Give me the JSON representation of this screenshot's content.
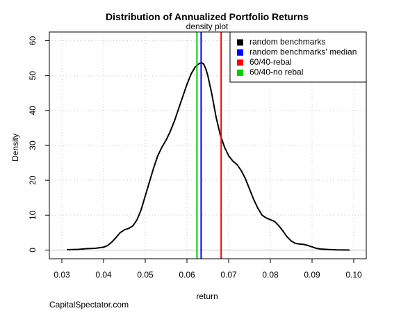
{
  "chart_data": {
    "type": "line",
    "title": "Distribution of Annualized Portfolio Returns",
    "subtitle": "density plot",
    "xlabel": "return",
    "ylabel": "Density",
    "xlim": [
      0.027,
      0.103
    ],
    "ylim": [
      -2.5,
      62.5
    ],
    "x_ticks": [
      0.03,
      0.04,
      0.05,
      0.06,
      0.07,
      0.08,
      0.09,
      0.1
    ],
    "x_tick_labels": [
      "0.03",
      "0.04",
      "0.05",
      "0.06",
      "0.07",
      "0.08",
      "0.09",
      "0.10"
    ],
    "y_ticks": [
      0,
      10,
      20,
      30,
      40,
      50,
      60
    ],
    "y_tick_labels": [
      "0",
      "10",
      "20",
      "30",
      "40",
      "50",
      "60"
    ],
    "grid": true,
    "legend_position": "top-right",
    "colors": {
      "density": "#000000",
      "median": "#0000ff",
      "rebal": "#ff0000",
      "no_rebal": "#00cc00",
      "grid": "#c8c8c8",
      "baseline": "#c0c0c0"
    },
    "series": [
      {
        "name": "random benchmarks",
        "color": "#000000",
        "x": [
          0.0312,
          0.034,
          0.036,
          0.038,
          0.04,
          0.041,
          0.042,
          0.043,
          0.044,
          0.045,
          0.046,
          0.047,
          0.048,
          0.049,
          0.05,
          0.051,
          0.052,
          0.053,
          0.054,
          0.055,
          0.056,
          0.057,
          0.058,
          0.059,
          0.06,
          0.061,
          0.062,
          0.063,
          0.0635,
          0.064,
          0.0645,
          0.065,
          0.066,
          0.067,
          0.068,
          0.069,
          0.07,
          0.071,
          0.072,
          0.073,
          0.074,
          0.075,
          0.076,
          0.077,
          0.078,
          0.079,
          0.08,
          0.081,
          0.082,
          0.083,
          0.084,
          0.085,
          0.086,
          0.087,
          0.088,
          0.089,
          0.09,
          0.091,
          0.092,
          0.094,
          0.096,
          0.099
        ],
        "values": [
          0.1,
          0.2,
          0.4,
          0.5,
          0.8,
          1.3,
          2.3,
          3.6,
          5.0,
          5.8,
          6.2,
          6.9,
          8.6,
          11.5,
          15.5,
          19.5,
          23.5,
          27.0,
          29.5,
          31.5,
          34.0,
          37.0,
          40.5,
          44.0,
          47.5,
          50.5,
          52.5,
          53.5,
          53.7,
          53.3,
          52.0,
          50.0,
          44.5,
          38.0,
          33.0,
          29.5,
          27.0,
          25.5,
          24.5,
          22.8,
          20.5,
          17.5,
          14.5,
          12.0,
          10.0,
          9.2,
          8.7,
          8.2,
          7.0,
          5.5,
          3.8,
          2.6,
          1.9,
          1.7,
          1.6,
          1.3,
          0.9,
          0.5,
          0.3,
          0.15,
          0.05,
          0.0
        ]
      }
    ],
    "vertical_lines": [
      {
        "name": "random benchmarks' median",
        "x": 0.0634,
        "color": "#0000ff"
      },
      {
        "name": "60/40-rebal",
        "x": 0.0682,
        "color": "#ff0000"
      },
      {
        "name": "60/40-no rebal",
        "x": 0.0624,
        "color": "#00cc00"
      }
    ],
    "legend": [
      {
        "label": "random benchmarks",
        "color": "#000000"
      },
      {
        "label": "random benchmarks' median",
        "color": "#0000ff"
      },
      {
        "label": "60/40-rebal",
        "color": "#ff0000"
      },
      {
        "label": "60/40-no rebal",
        "color": "#00cc00"
      }
    ]
  },
  "credit": "CapitalSpectator.com"
}
